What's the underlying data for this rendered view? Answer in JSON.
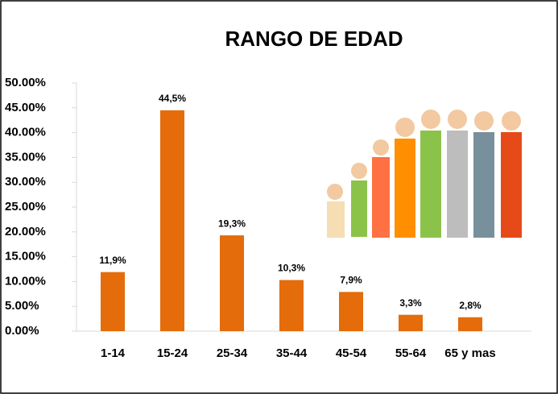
{
  "chart_data": {
    "type": "bar",
    "title": "RANGO DE EDAD",
    "categories": [
      "1-14",
      "15-24",
      "25-34",
      "35-44",
      "45-54",
      "55-64",
      "65 y mas"
    ],
    "values": [
      11.9,
      44.5,
      19.3,
      10.3,
      7.9,
      3.3,
      2.8
    ],
    "value_labels": [
      "11,9%",
      "44,5%",
      "19,3%",
      "10,3%",
      "7,9%",
      "3,3%",
      "2,8%"
    ],
    "color": "#e46c0a",
    "ylim": [
      0,
      50
    ],
    "yticks": [
      {
        "value": 0,
        "label": "0.00%"
      },
      {
        "value": 5,
        "label": "5.00%"
      },
      {
        "value": 10,
        "label": "10.00%"
      },
      {
        "value": 15,
        "label": "15.00%"
      },
      {
        "value": 20,
        "label": "20.00%"
      },
      {
        "value": 25,
        "label": "25.00%"
      },
      {
        "value": 30,
        "label": "30.00%"
      },
      {
        "value": 35,
        "label": "35.00%"
      },
      {
        "value": 40,
        "label": "40.00%"
      },
      {
        "value": 45,
        "label": "45.00%"
      },
      {
        "value": 50,
        "label": "50.00%"
      }
    ]
  }
}
